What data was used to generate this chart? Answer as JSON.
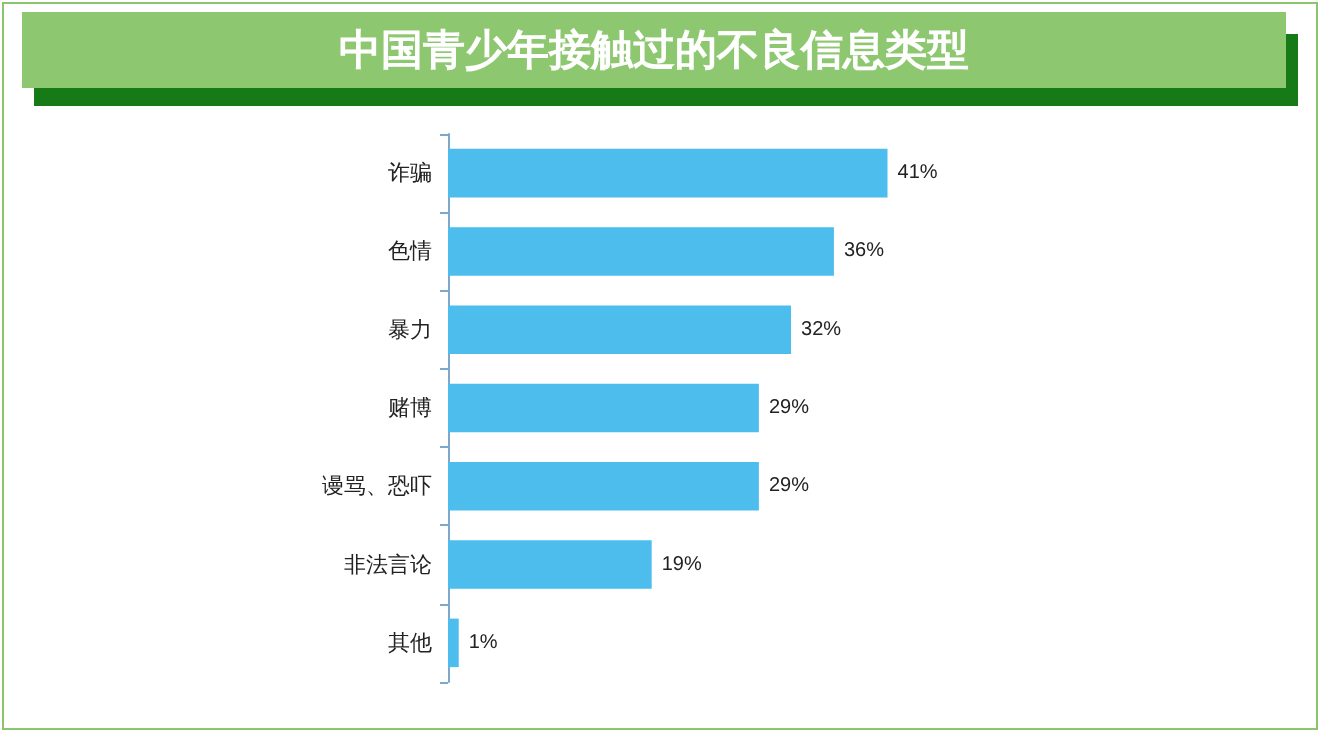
{
  "chart_data": {
    "type": "bar",
    "orientation": "horizontal",
    "title": "中国青少年接触过的不良信息类型",
    "categories": [
      "诈骗",
      "色情",
      "暴力",
      "赌博",
      "谩骂、恐吓",
      "非法言论",
      "其他"
    ],
    "values": [
      41,
      36,
      32,
      29,
      29,
      19,
      1
    ],
    "value_labels": [
      "41%",
      "36%",
      "32%",
      "29%",
      "29%",
      "19%",
      "1%"
    ],
    "color": "#4dbdee"
  }
}
